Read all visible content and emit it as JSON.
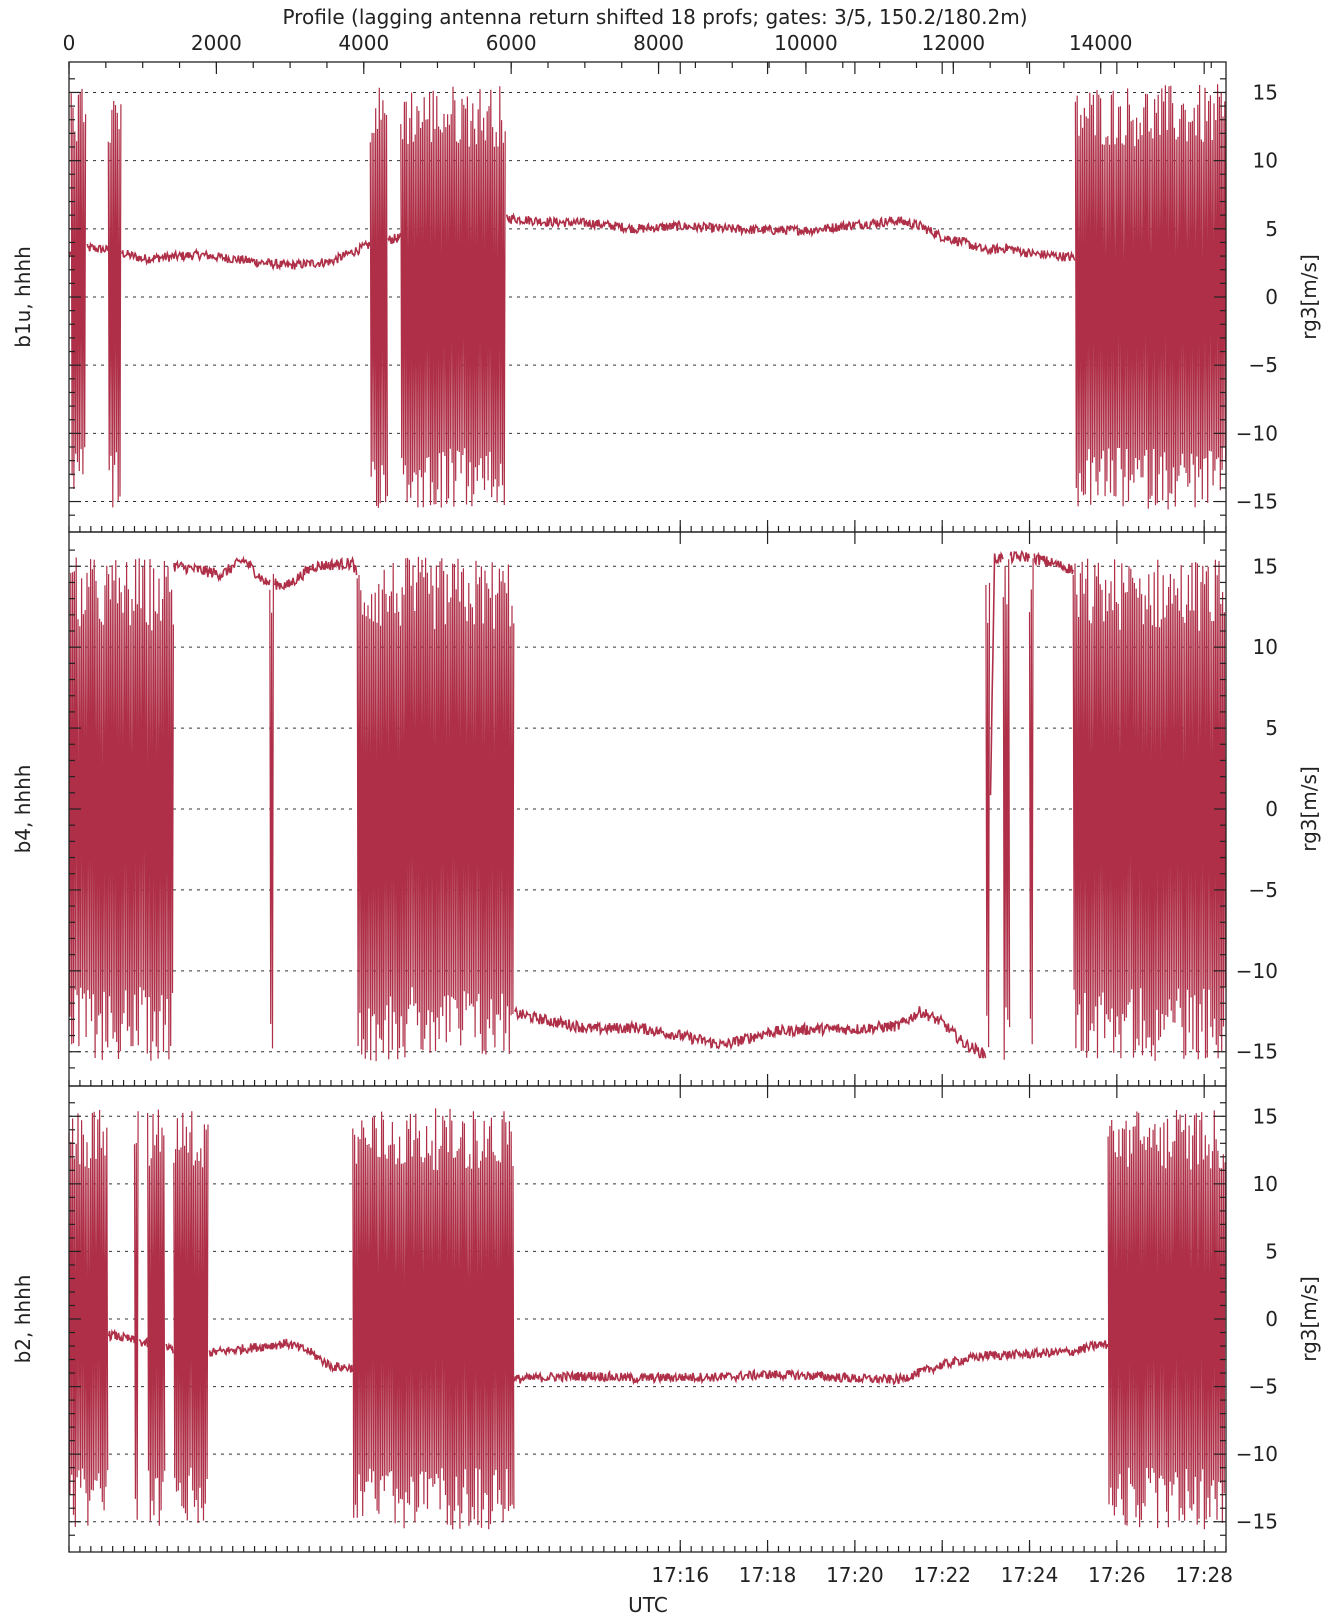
{
  "chart_data": {
    "type": "line",
    "title": "Profile (lagging antenna return shifted 18 profs; gates: 3/5, 150.2/180.2m)",
    "top_axis": {
      "range": [
        0,
        15700
      ],
      "ticks": [
        0,
        2000,
        4000,
        6000,
        8000,
        10000,
        12000,
        14000
      ]
    },
    "x_axis": {
      "label": "UTC",
      "range_min": [
        1022.0,
        1048.5
      ],
      "tick_labels": [
        "17:16",
        "17:18",
        "17:20",
        "17:22",
        "17:24",
        "17:26",
        "17:28"
      ],
      "tick_values_min": [
        1036,
        1038,
        1040,
        1042,
        1044,
        1046,
        1048
      ]
    },
    "color": "#ae2f47",
    "panels": [
      {
        "name": "b1u",
        "left_label": "b1u, hhhh",
        "right_label": "rg3[m/s]",
        "ylim": [
          -16.5,
          16.5
        ],
        "yticks": [
          15,
          10,
          5,
          0,
          -5,
          -10,
          -15
        ],
        "ytick_labels": [
          "15",
          "10",
          "5",
          "0",
          "−5",
          "−10",
          "−15"
        ],
        "trend": [
          [
            1022.0,
            3.2
          ],
          [
            1022.5,
            3.6
          ],
          [
            1023.0,
            3.4
          ],
          [
            1023.7,
            2.8
          ],
          [
            1025.0,
            3.1
          ],
          [
            1026.0,
            2.7
          ],
          [
            1027.0,
            2.3
          ],
          [
            1028.0,
            2.6
          ],
          [
            1028.5,
            3.3
          ],
          [
            1029.0,
            4.0
          ],
          [
            1032.0,
            5.8
          ],
          [
            1033.0,
            5.5
          ],
          [
            1034.0,
            5.4
          ],
          [
            1035.0,
            5.0
          ],
          [
            1036.0,
            5.2
          ],
          [
            1037.0,
            5.0
          ],
          [
            1038.0,
            4.9
          ],
          [
            1039.0,
            4.9
          ],
          [
            1040.0,
            5.3
          ],
          [
            1041.0,
            5.6
          ],
          [
            1041.5,
            5.2
          ],
          [
            1042.0,
            4.4
          ],
          [
            1042.5,
            4.0
          ],
          [
            1043.0,
            3.4
          ],
          [
            1043.5,
            3.6
          ],
          [
            1044.0,
            3.2
          ],
          [
            1045.0,
            2.9
          ]
        ],
        "noise_bands": [
          [
            1022.05,
            1022.4
          ],
          [
            1022.9,
            1023.2
          ],
          [
            1028.9,
            1029.3
          ],
          [
            1029.6,
            1032.0
          ],
          [
            1045.05,
            1048.5
          ]
        ]
      },
      {
        "name": "b4",
        "left_label": "b4, hhhh",
        "right_label": "rg3[m/s]",
        "ylim": [
          -16.5,
          16.5
        ],
        "yticks": [
          15,
          10,
          5,
          0,
          -5,
          -10,
          -15
        ],
        "ytick_labels": [
          "15",
          "10",
          "5",
          "0",
          "−5",
          "−10",
          "−15"
        ],
        "trend": [
          [
            1022.0,
            15.0
          ],
          [
            1024.5,
            15.0
          ],
          [
            1025.5,
            14.5
          ],
          [
            1026.0,
            15.4
          ],
          [
            1026.5,
            14.0
          ],
          [
            1027.0,
            13.8
          ],
          [
            1027.6,
            15.0
          ],
          [
            1028.5,
            15.2
          ],
          [
            1032.0,
            -12.5
          ],
          [
            1033.0,
            -13.1
          ],
          [
            1034.0,
            -13.6
          ],
          [
            1035.0,
            -13.5
          ],
          [
            1036.0,
            -14.0
          ],
          [
            1037.0,
            -14.6
          ],
          [
            1038.0,
            -13.8
          ],
          [
            1039.0,
            -13.6
          ],
          [
            1040.0,
            -13.6
          ],
          [
            1041.0,
            -13.4
          ],
          [
            1041.5,
            -12.5
          ],
          [
            1042.0,
            -13.2
          ],
          [
            1042.5,
            -14.5
          ],
          [
            1043.0,
            -15.2
          ],
          [
            1043.2,
            15.5
          ],
          [
            1044.0,
            15.6
          ],
          [
            1044.5,
            15.2
          ],
          [
            1045.0,
            14.8
          ]
        ],
        "noise_bands": [
          [
            1022.0,
            1024.4
          ],
          [
            1026.6,
            1026.7
          ],
          [
            1028.6,
            1032.2
          ],
          [
            1043.0,
            1043.1
          ],
          [
            1043.4,
            1043.55
          ],
          [
            1044.0,
            1044.1
          ],
          [
            1045.0,
            1048.5
          ]
        ]
      },
      {
        "name": "b2",
        "left_label": "b2, hhhh",
        "right_label": "rg3[m/s]",
        "ylim": [
          -16.5,
          16.5
        ],
        "yticks": [
          15,
          10,
          5,
          0,
          -5,
          -10,
          -15
        ],
        "ytick_labels": [
          "15",
          "10",
          "5",
          "0",
          "−5",
          "−10",
          "−15"
        ],
        "trend": [
          [
            1022.0,
            -1.5
          ],
          [
            1023.0,
            -1.2
          ],
          [
            1024.0,
            -2.0
          ],
          [
            1025.0,
            -2.6
          ],
          [
            1026.0,
            -2.2
          ],
          [
            1027.0,
            -1.8
          ],
          [
            1027.5,
            -2.4
          ],
          [
            1028.0,
            -3.5
          ],
          [
            1032.0,
            -4.5
          ],
          [
            1033.0,
            -4.3
          ],
          [
            1034.0,
            -4.2
          ],
          [
            1035.0,
            -4.4
          ],
          [
            1036.0,
            -4.3
          ],
          [
            1037.0,
            -4.3
          ],
          [
            1038.0,
            -4.1
          ],
          [
            1039.0,
            -4.2
          ],
          [
            1040.0,
            -4.4
          ],
          [
            1041.0,
            -4.5
          ],
          [
            1042.0,
            -3.4
          ],
          [
            1042.5,
            -3.0
          ],
          [
            1043.0,
            -2.7
          ],
          [
            1044.0,
            -2.6
          ],
          [
            1045.0,
            -2.4
          ],
          [
            1045.6,
            -1.9
          ]
        ],
        "noise_bands": [
          [
            1022.0,
            1022.9
          ],
          [
            1023.5,
            1023.6
          ],
          [
            1023.8,
            1024.2
          ],
          [
            1024.4,
            1025.2
          ],
          [
            1028.5,
            1032.2
          ],
          [
            1045.8,
            1048.5
          ]
        ]
      }
    ]
  }
}
